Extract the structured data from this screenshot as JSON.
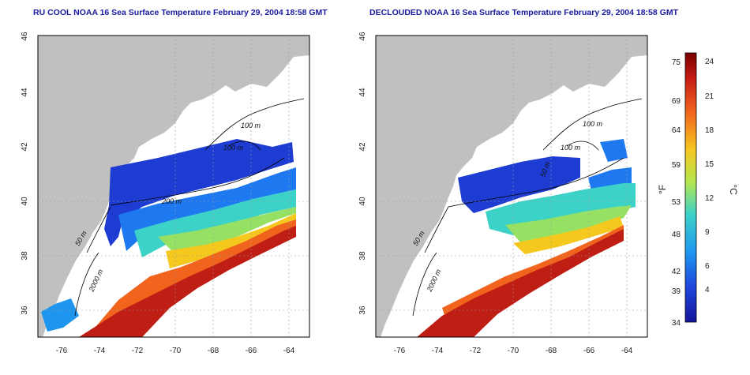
{
  "panels": [
    {
      "id": "left",
      "title": "RU COOL NOAA 16 Sea Surface Temperature February 29, 2004 18:58 GMT",
      "contour_labels": [
        "100 m",
        "100 m",
        "50 m",
        "2000 m",
        "200 m"
      ]
    },
    {
      "id": "right",
      "title": "DECLOUDED NOAA 16 Sea Surface Temperature February 29, 2004 18:58 GMT",
      "contour_labels": [
        "100 m",
        "100 m",
        "50 m",
        "2000 m",
        "50 m"
      ]
    }
  ],
  "axes": {
    "lat_ticks": [
      "46",
      "44",
      "42",
      "40",
      "38",
      "36"
    ],
    "lon_ticks": [
      "-76",
      "-74",
      "-72",
      "-70",
      "-68",
      "-66",
      "-64"
    ]
  },
  "colorbar": {
    "fahrenheit_ticks": [
      "75",
      "69",
      "64",
      "59",
      "53",
      "48",
      "42",
      "39",
      "34"
    ],
    "celsius_ticks": [
      "24",
      "21",
      "18",
      "15",
      "12",
      "9",
      "6",
      "4"
    ],
    "fahrenheit_label": "°F",
    "celsius_label": "°C",
    "colors": [
      "#7a0000",
      "#c81e14",
      "#f0641e",
      "#f5c81e",
      "#b4e650",
      "#3cd2c8",
      "#1e96f0",
      "#1e46dc",
      "#14149b"
    ]
  },
  "colors": {
    "land": "#c0c0c0",
    "water": "#ffffff",
    "title": "#1a1aa0"
  }
}
